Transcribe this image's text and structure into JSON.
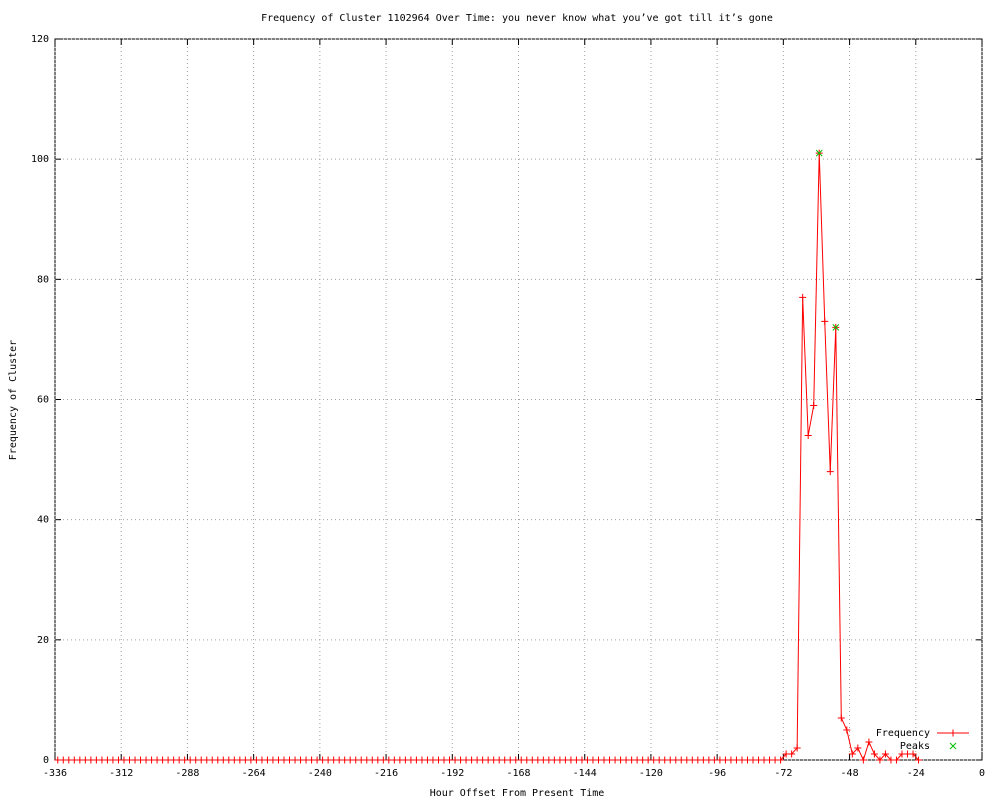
{
  "chart_data": {
    "type": "line",
    "title": "Frequency of Cluster 1102964 Over Time: you never know what you’ve got till it’s gone",
    "x_label": "Hour Offset From Present Time",
    "y_label": "Frequency of Cluster",
    "xlim": [
      -336,
      0
    ],
    "ylim": [
      0,
      120
    ],
    "xticks": [
      -336,
      -312,
      -288,
      -264,
      -240,
      -216,
      -192,
      -168,
      -144,
      -120,
      -96,
      -72,
      -48,
      -24,
      0
    ],
    "yticks": [
      0,
      20,
      40,
      60,
      80,
      100,
      120
    ],
    "grid": true,
    "legend": "bottom-right",
    "series": [
      {
        "name": "Frequency",
        "color": "#ff0000",
        "marker": "+",
        "line": true,
        "x": [
          -335,
          -333,
          -331,
          -329,
          -327,
          -325,
          -323,
          -321,
          -319,
          -317,
          -315,
          -313,
          -311,
          -309,
          -307,
          -305,
          -303,
          -301,
          -299,
          -297,
          -295,
          -293,
          -291,
          -289,
          -287,
          -285,
          -283,
          -281,
          -279,
          -277,
          -275,
          -273,
          -271,
          -269,
          -267,
          -265,
          -263,
          -261,
          -259,
          -257,
          -255,
          -253,
          -251,
          -249,
          -247,
          -245,
          -243,
          -241,
          -239,
          -237,
          -235,
          -233,
          -231,
          -229,
          -227,
          -225,
          -223,
          -221,
          -219,
          -217,
          -215,
          -213,
          -211,
          -209,
          -207,
          -205,
          -203,
          -201,
          -199,
          -197,
          -195,
          -193,
          -191,
          -189,
          -187,
          -185,
          -183,
          -181,
          -179,
          -177,
          -175,
          -173,
          -171,
          -169,
          -167,
          -165,
          -163,
          -161,
          -159,
          -157,
          -155,
          -153,
          -151,
          -149,
          -147,
          -145,
          -143,
          -141,
          -139,
          -137,
          -135,
          -133,
          -131,
          -129,
          -127,
          -125,
          -123,
          -121,
          -119,
          -117,
          -115,
          -113,
          -111,
          -109,
          -107,
          -105,
          -103,
          -101,
          -99,
          -97,
          -95,
          -93,
          -91,
          -89,
          -87,
          -85,
          -83,
          -81,
          -79,
          -77,
          -75,
          -73,
          -71,
          -69,
          -67,
          -65,
          -63,
          -61,
          -59,
          -57,
          -55,
          -53,
          -51,
          -49,
          -47,
          -45,
          -43,
          -41,
          -39,
          -37,
          -35,
          -33,
          -31,
          -29,
          -27,
          -25,
          -23
        ],
        "values": [
          0,
          0,
          0,
          0,
          0,
          0,
          0,
          0,
          0,
          0,
          0,
          0,
          0,
          0,
          0,
          0,
          0,
          0,
          0,
          0,
          0,
          0,
          0,
          0,
          0,
          0,
          0,
          0,
          0,
          0,
          0,
          0,
          0,
          0,
          0,
          0,
          0,
          0,
          0,
          0,
          0,
          0,
          0,
          0,
          0,
          0,
          0,
          0,
          0,
          0,
          0,
          0,
          0,
          0,
          0,
          0,
          0,
          0,
          0,
          0,
          0,
          0,
          0,
          0,
          0,
          0,
          0,
          0,
          0,
          0,
          0,
          0,
          0,
          0,
          0,
          0,
          0,
          0,
          0,
          0,
          0,
          0,
          0,
          0,
          0,
          0,
          0,
          0,
          0,
          0,
          0,
          0,
          0,
          0,
          0,
          0,
          0,
          0,
          0,
          0,
          0,
          0,
          0,
          0,
          0,
          0,
          0,
          0,
          0,
          0,
          0,
          0,
          0,
          0,
          0,
          0,
          0,
          0,
          0,
          0,
          0,
          0,
          0,
          0,
          0,
          0,
          0,
          0,
          0,
          0,
          0,
          0,
          1,
          1,
          2,
          77,
          54,
          59,
          101,
          73,
          48,
          72,
          7,
          5,
          1,
          2,
          0,
          3,
          1,
          0,
          1,
          0,
          0,
          1,
          1,
          1,
          0
        ]
      },
      {
        "name": "Peaks",
        "color": "#00c000",
        "marker": "x",
        "line": false,
        "x": [
          -59,
          -53
        ],
        "values": [
          101,
          72
        ]
      }
    ]
  }
}
